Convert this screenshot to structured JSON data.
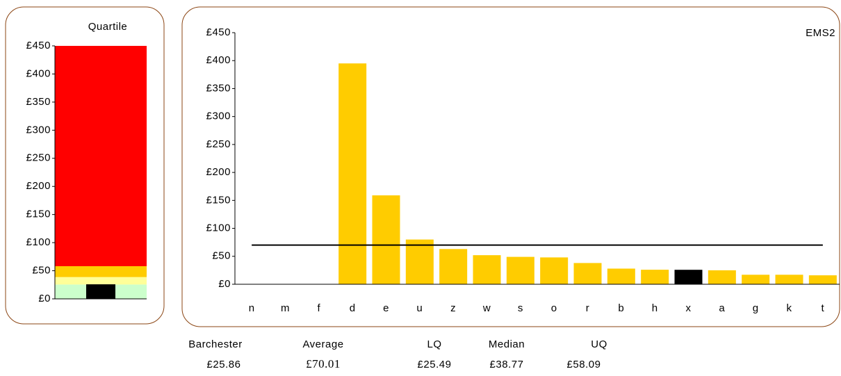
{
  "chart_data": [
    {
      "type": "stacked-bar",
      "title": "Quartile",
      "segments": [
        {
          "value": 25.49,
          "color": "#ccffcc"
        },
        {
          "value": 13.28,
          "color": "#ffff99"
        },
        {
          "value": 19.32,
          "color": "#ffcc00"
        },
        {
          "value": 391.91,
          "color": "#ff0000"
        }
      ],
      "marker_color": "#000000",
      "ylim": [
        0,
        450
      ],
      "yticks": [
        {
          "value": 0,
          "label": "£0"
        },
        {
          "value": 50,
          "label": "£50"
        },
        {
          "value": 100,
          "label": "£100"
        },
        {
          "value": 150,
          "label": "£150"
        },
        {
          "value": 200,
          "label": "£200"
        },
        {
          "value": 250,
          "label": "£250"
        },
        {
          "value": 300,
          "label": "£300"
        },
        {
          "value": 350,
          "label": "£350"
        },
        {
          "value": 400,
          "label": "£400"
        },
        {
          "value": 450,
          "label": "£450"
        }
      ]
    },
    {
      "type": "bar",
      "title": "EMS2",
      "categories": [
        "n",
        "m",
        "f",
        "d",
        "e",
        "u",
        "z",
        "w",
        "s",
        "o",
        "r",
        "b",
        "h",
        "x",
        "a",
        "g",
        "k",
        "t"
      ],
      "values": [
        0,
        0,
        0,
        395,
        159,
        80,
        63,
        52,
        49,
        48,
        38,
        28,
        26,
        25.86,
        25,
        17,
        17,
        16
      ],
      "colors": [
        "#ffcc00",
        "#ffcc00",
        "#ffcc00",
        "#ffcc00",
        "#ffcc00",
        "#ffcc00",
        "#ffcc00",
        "#ffcc00",
        "#ffcc00",
        "#ffcc00",
        "#ffcc00",
        "#ffcc00",
        "#ffcc00",
        "#000000",
        "#ffcc00",
        "#ffcc00",
        "#ffcc00",
        "#ffcc00"
      ],
      "line_color": "#000000",
      "ylim": [
        0,
        450
      ],
      "yticks": [
        {
          "value": 0,
          "label": "£0"
        },
        {
          "value": 50,
          "label": "£50"
        },
        {
          "value": 100,
          "label": "£100"
        },
        {
          "value": 150,
          "label": "£150"
        },
        {
          "value": 200,
          "label": "£200"
        },
        {
          "value": 250,
          "label": "£250"
        },
        {
          "value": 300,
          "label": "£300"
        },
        {
          "value": 350,
          "label": "£350"
        },
        {
          "value": 400,
          "label": "£400"
        },
        {
          "value": 450,
          "label": "£450"
        }
      ]
    }
  ],
  "summary": {
    "labels": [
      "Barchester",
      "Average",
      "LQ",
      "Median",
      "UQ"
    ],
    "values": [
      {
        "value": 25.86,
        "label": "£25.86"
      },
      {
        "value": 70.01,
        "label": "£70.01"
      },
      {
        "value": 25.49,
        "label": "£25.49"
      },
      {
        "value": 38.77,
        "label": "£38.77"
      },
      {
        "value": 58.09,
        "label": "£58.09"
      }
    ]
  }
}
